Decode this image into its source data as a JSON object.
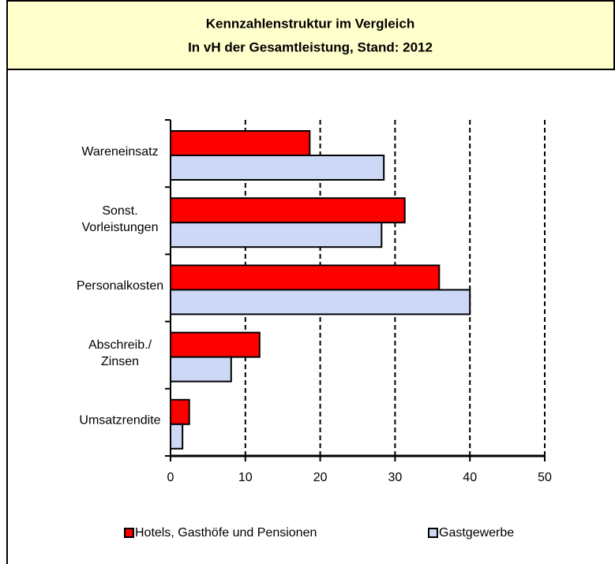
{
  "chart_data": {
    "type": "bar",
    "orientation": "horizontal",
    "title": [
      "Kennzahlenstruktur im Vergleich",
      "In vH der Gesamtleistung, Stand: 2012"
    ],
    "categories": [
      "Wareneinsatz",
      "Sonst. Vorleistungen",
      "Personalkosten",
      "Abschreib./ Zinsen",
      "Umsatzrendite"
    ],
    "series": [
      {
        "name": "Hotels, Gasthöfe und Pensionen",
        "color": "#ff0000",
        "values": [
          18.6,
          31.3,
          35.9,
          11.9,
          2.5
        ]
      },
      {
        "name": "Gastgewerbe",
        "color": "#ccd8f6",
        "values": [
          28.5,
          28.2,
          40.0,
          8.1,
          1.6
        ]
      }
    ],
    "xlim": [
      0,
      50
    ],
    "xticks": [
      0,
      10,
      20,
      30,
      40,
      50
    ],
    "grid": true,
    "legend": "bottom"
  }
}
